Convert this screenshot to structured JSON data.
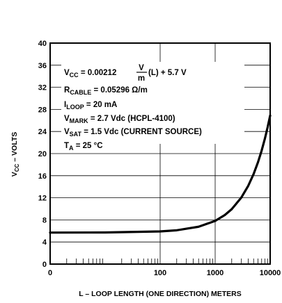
{
  "chart_data": {
    "type": "line",
    "x_scale": "log",
    "xlim": [
      1,
      10000
    ],
    "ylim": [
      0,
      40
    ],
    "grid": true,
    "x_ticks": [
      "0",
      "100",
      "1000",
      "10000"
    ],
    "y_ticks": [
      "0",
      "4",
      "8",
      "12",
      "16",
      "20",
      "24",
      "28",
      "32",
      "36",
      "40"
    ],
    "xlabel": "L – LOOP LENGTH (ONE DIRECTION) METERS",
    "ylabel_main": "V",
    "ylabel_sub": "CC",
    "ylabel_rest": " – VOLTS",
    "series": [
      {
        "x": [
          1,
          10,
          100,
          200,
          500,
          1000,
          1500,
          2000,
          3000,
          4000,
          5000,
          6000,
          7000,
          8000,
          9000,
          10000
        ],
        "y": [
          5.7,
          5.72,
          5.91,
          6.12,
          6.76,
          7.82,
          8.88,
          9.94,
          12.06,
          14.18,
          16.3,
          18.42,
          20.54,
          22.66,
          24.78,
          26.9
        ]
      }
    ],
    "annotations": {
      "eq_prefix_main": "V",
      "eq_prefix_sub": "CC",
      "eq_middle": " = 0.00212 ",
      "eq_frac_num": "V",
      "eq_frac_den": "m",
      "eq_suffix": " (L) + 5.7 V",
      "r_main": "R",
      "r_sub": "CABLE",
      "r_rest": " = 0.05296 Ω/m",
      "i_main": "I",
      "i_sub": "LOOP",
      "i_rest": " = 20 mA",
      "vm_main": "V",
      "vm_sub": "MARK",
      "vm_rest": " = 2.7 Vdc (HCPL-4100)",
      "vs_main": "V",
      "vs_sub": "SAT",
      "vs_rest": " = 1.5 Vdc (CURRENT SOURCE)",
      "ta_main": "T",
      "ta_sub": "A",
      "ta_rest": " = 25 °C"
    }
  }
}
